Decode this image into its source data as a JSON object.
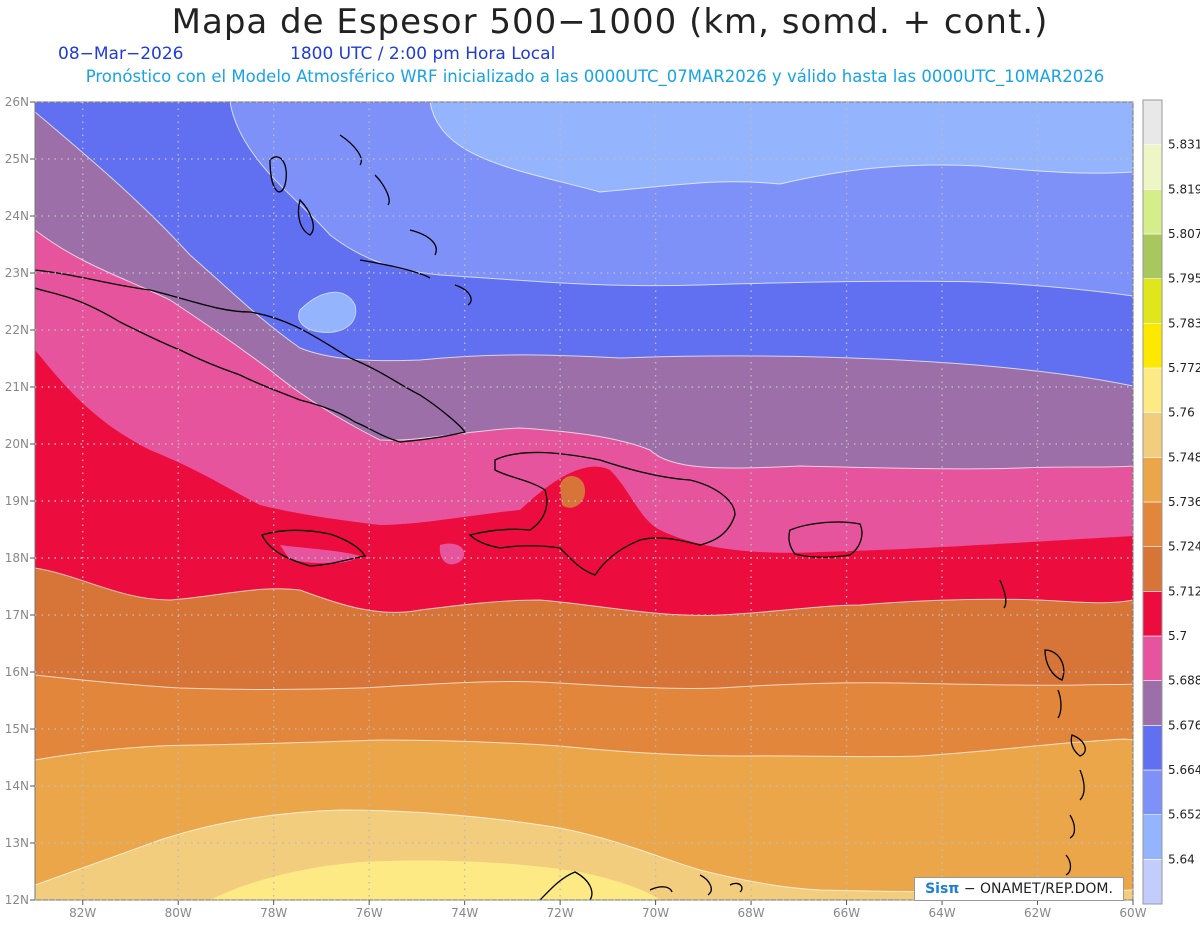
{
  "header": {
    "title": "Mapa de Espesor 500−1000 (km, somd. + cont.)",
    "date": "08−Mar−2026",
    "time": "1800 UTC / 2:00 pm Hora Local",
    "forecast": "Pronóstico con el Modelo Atmosférico WRF inicializado a las 0000UTC_07MAR2026 y válido hasta las  0000UTC_10MAR2026"
  },
  "map": {
    "lon_range": [
      -83,
      -60
    ],
    "lat_range": [
      12,
      26
    ],
    "lon_ticks": [
      "82W",
      "80W",
      "78W",
      "76W",
      "74W",
      "72W",
      "70W",
      "68W",
      "66W",
      "64W",
      "62W",
      "60W"
    ],
    "lat_ticks": [
      "12N",
      "13N",
      "14N",
      "15N",
      "16N",
      "17N",
      "18N",
      "19N",
      "20N",
      "21N",
      "22N",
      "23N",
      "24N",
      "25N",
      "26N"
    ]
  },
  "legend": {
    "labels": [
      "5.64",
      "5.652",
      "5.664",
      "5.676",
      "5.688",
      "5.7",
      "5.712",
      "5.724",
      "5.736",
      "5.748",
      "5.76",
      "5.772",
      "5.783",
      "5.795",
      "5.807",
      "5.819",
      "5.831"
    ],
    "colors": [
      "#c3cdfb",
      "#94b4fd",
      "#7d91f8",
      "#6070f0",
      "#9c6fa8",
      "#e6549d",
      "#ec0c3e",
      "#d77437",
      "#e2863c",
      "#eba64a",
      "#f1cd7d",
      "#fdea84",
      "#fde800",
      "#dfe71c",
      "#a8c75c",
      "#d5ee8c",
      "#eef6c6",
      "#e8e8e8"
    ]
  },
  "credit": {
    "sis": "Sisπ",
    "rest": " − ONAMET/REP.DOM."
  }
}
